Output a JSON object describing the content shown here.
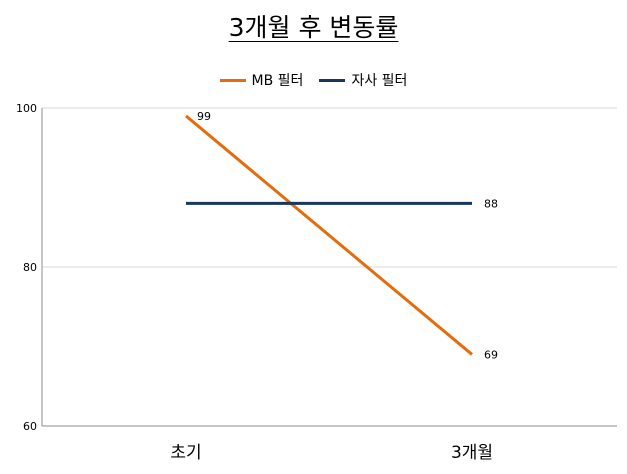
{
  "chart_data": {
    "type": "line",
    "title": "3개월 후 변동률",
    "categories": [
      "초기",
      "3개월"
    ],
    "series": [
      {
        "name": "MB 필터",
        "values": [
          99,
          69
        ],
        "color": "#e46c0a"
      },
      {
        "name": "자사 필터",
        "values": [
          88,
          88
        ],
        "color": "#17375e"
      }
    ],
    "ylim": [
      60,
      100
    ],
    "yticks": [
      60,
      80,
      100
    ],
    "grid": true,
    "legend": "top"
  }
}
